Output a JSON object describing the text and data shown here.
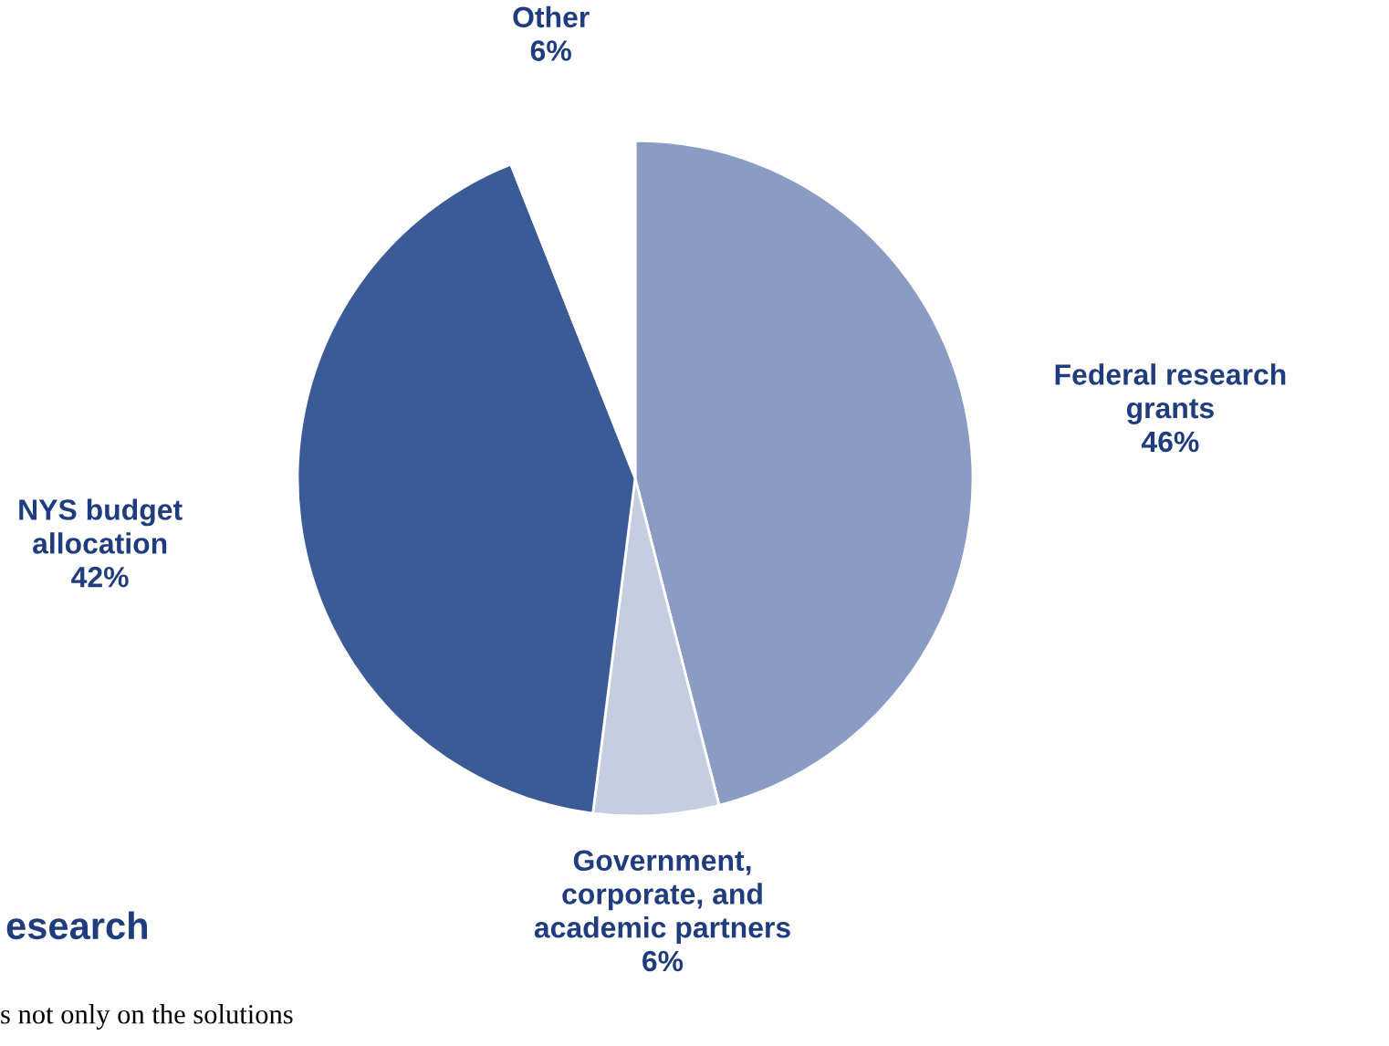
{
  "chart_data": {
    "type": "pie",
    "categories": [
      "Federal research\ngrants",
      "Government,\ncorporate, and\nacademic partners",
      "NYS budget\nallocation",
      "Other"
    ],
    "values": [
      46,
      6,
      42,
      6
    ],
    "colors": [
      "#8a9cc4",
      "#c6cde1",
      "#3a5b95",
      "#ffffff"
    ],
    "value_labels": [
      "46%",
      "6%",
      "42%",
      "6%"
    ],
    "annotations": [
      "esearch",
      "s not only on the solutions"
    ]
  }
}
